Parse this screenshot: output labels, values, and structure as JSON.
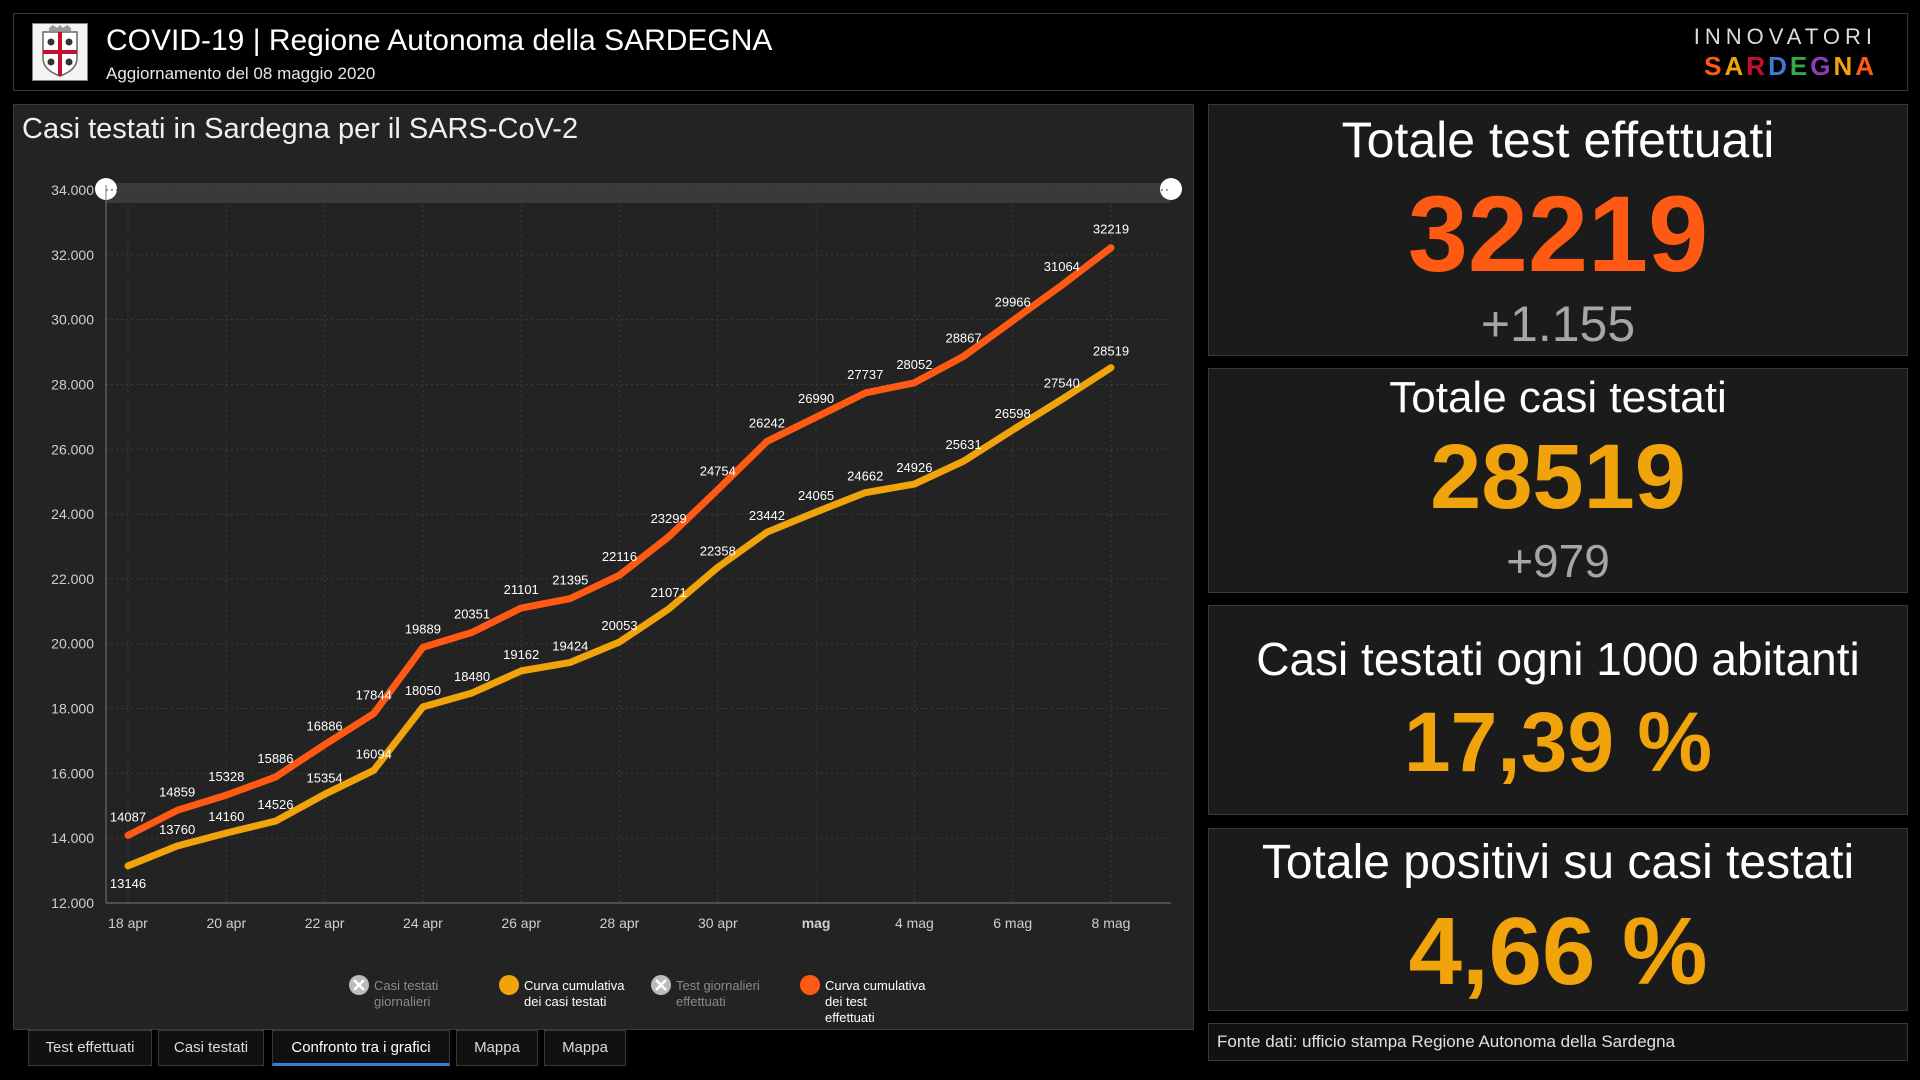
{
  "header": {
    "title": "COVID-19 | Regione Autonoma della SARDEGNA",
    "subtitle": "Aggiornamento del 08 maggio 2020",
    "brand_top": "INNOVATORI",
    "brand_bottom": "SARDEGNA",
    "crest_icon": "regional-crest-icon"
  },
  "chart_panel": {
    "title": "Casi testati in Sardegna per il SARS-CoV-2"
  },
  "chart_data": {
    "type": "line",
    "title": "Casi testati in Sardegna per il SARS-CoV-2",
    "ylim": [
      12000,
      34000
    ],
    "y_ticks": [
      "12.000",
      "14.000",
      "16.000",
      "18.000",
      "20.000",
      "22.000",
      "24.000",
      "26.000",
      "28.000",
      "30.000",
      "32.000",
      "34.000"
    ],
    "x_ticks": [
      "18 apr",
      "20 apr",
      "22 apr",
      "24 apr",
      "26 apr",
      "28 apr",
      "30 apr",
      "mag",
      "4 mag",
      "6 mag",
      "8 mag"
    ],
    "x": [
      "18 apr",
      "19 apr",
      "20 apr",
      "21 apr",
      "22 apr",
      "23 apr",
      "24 apr",
      "25 apr",
      "26 apr",
      "27 apr",
      "28 apr",
      "29 apr",
      "30 apr",
      "1 mag",
      "2 mag",
      "3 mag",
      "4 mag",
      "5 mag",
      "6 mag",
      "7 mag",
      "8 mag"
    ],
    "grid": true,
    "series": [
      {
        "name": "Curva cumulativa dei test effettuati",
        "color": "#ff5a14",
        "values": [
          14087,
          14859,
          15328,
          15886,
          16886,
          17844,
          19889,
          20351,
          21101,
          21395,
          22116,
          23299,
          24754,
          26242,
          26990,
          27737,
          28052,
          28867,
          29966,
          31064,
          32219
        ]
      },
      {
        "name": "Curva cumulativa dei casi testati",
        "color": "#f0a30a",
        "values": [
          13146,
          13760,
          14160,
          14526,
          15354,
          16094,
          18050,
          18480,
          19162,
          19424,
          20053,
          21071,
          22358,
          23442,
          24065,
          24662,
          24926,
          25631,
          26598,
          27540,
          28519
        ]
      }
    ],
    "legend": [
      {
        "label_line1": "Casi testati",
        "label_line2": "giornalieri",
        "label_line3": "",
        "color": "#dddddd",
        "enabled": false
      },
      {
        "label_line1": "Curva cumulativa",
        "label_line2": "dei casi testati",
        "label_line3": "",
        "color": "#f0a30a",
        "enabled": true
      },
      {
        "label_line1": "Test giornalieri",
        "label_line2": "effettuati",
        "label_line3": "",
        "color": "#dddddd",
        "enabled": false
      },
      {
        "label_line1": "Curva cumulativa",
        "label_line2": "dei test",
        "label_line3": "effettuati",
        "color": "#ff5a14",
        "enabled": true
      }
    ],
    "legend_placement": "bottom"
  },
  "tabs": [
    {
      "label": "Test effettuati",
      "active": false
    },
    {
      "label": "Casi testati",
      "active": false
    },
    {
      "label": "Confronto tra i grafici",
      "active": true
    },
    {
      "label": "Mappa",
      "active": false
    },
    {
      "label": "Mappa",
      "active": false
    }
  ],
  "stats": {
    "test": {
      "label": "Totale test effettuati",
      "value": "32219",
      "delta": "+1.155",
      "color": "#ff5a14"
    },
    "casi": {
      "label": "Totale casi testati",
      "value": "28519",
      "delta": "+979",
      "color": "#f0a30a"
    },
    "per1000": {
      "label": "Casi testati ogni 1000 abitanti",
      "value": "17,39 %",
      "color": "#f0a30a"
    },
    "positivi": {
      "label": "Totale positivi su casi testati",
      "value": "4,66 %",
      "color": "#f0a30a"
    }
  },
  "source": "Fonte dati: ufficio stampa Regione Autonoma della Sardegna"
}
